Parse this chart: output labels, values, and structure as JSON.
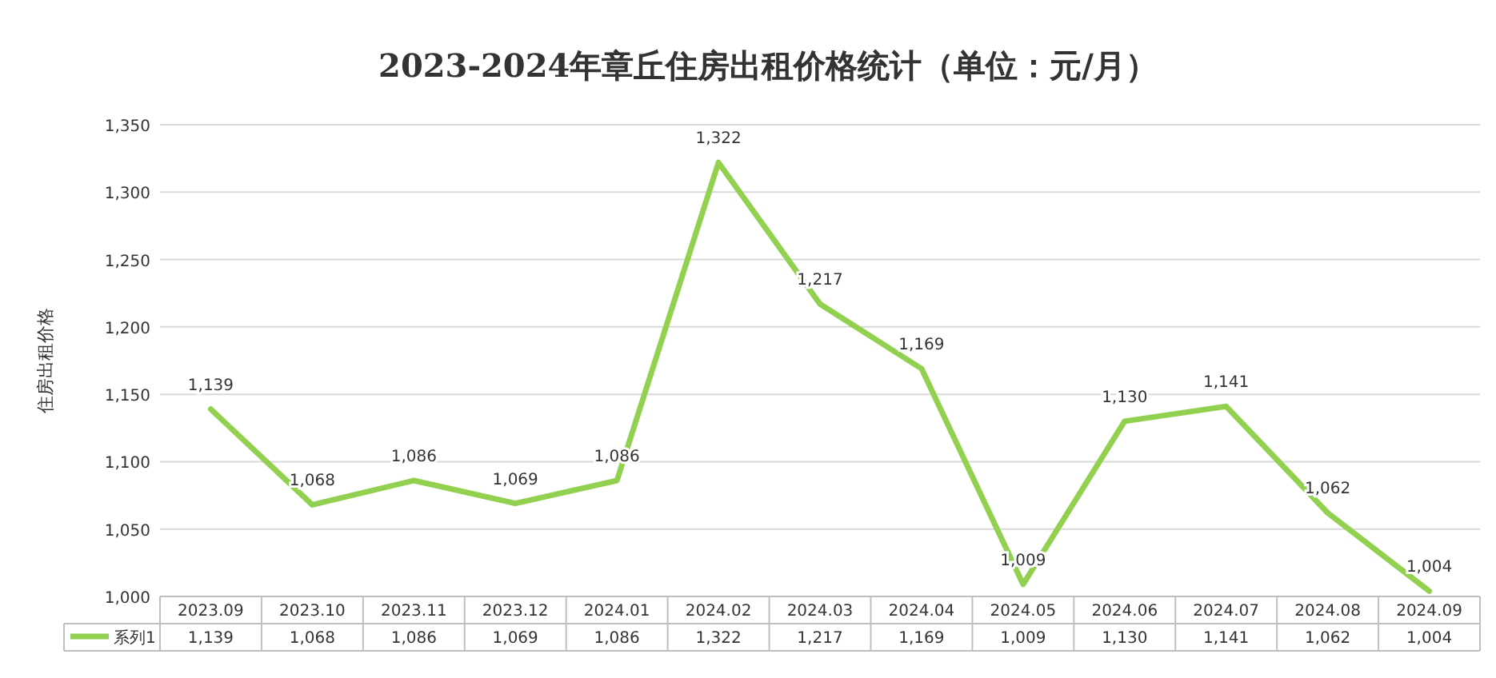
{
  "chart_data": {
    "type": "line",
    "title": "2023-2024年章丘住房出租价格统计（单位：元/月）",
    "ylabel": "住房出租价格",
    "categories": [
      "2023.09",
      "2023.10",
      "2023.11",
      "2023.12",
      "2024.01",
      "2024.02",
      "2024.03",
      "2024.04",
      "2024.05",
      "2024.06",
      "2024.07",
      "2024.08",
      "2024.09"
    ],
    "series": [
      {
        "name": "系列1",
        "color": "#92d050",
        "values": [
          1139,
          1068,
          1086,
          1069,
          1086,
          1322,
          1217,
          1169,
          1009,
          1130,
          1141,
          1062,
          1004
        ],
        "value_labels": [
          "1,139",
          "1,068",
          "1,086",
          "1,069",
          "1,086",
          "1,322",
          "1,217",
          "1,169",
          "1,009",
          "1,130",
          "1,141",
          "1,062",
          "1,004"
        ]
      }
    ],
    "ylim": [
      1000,
      1350
    ],
    "yticks": [
      {
        "value": 1000,
        "label": "1,000"
      },
      {
        "value": 1050,
        "label": "1,050"
      },
      {
        "value": 1100,
        "label": "1,100"
      },
      {
        "value": 1150,
        "label": "1,150"
      },
      {
        "value": 1200,
        "label": "1,200"
      },
      {
        "value": 1250,
        "label": "1,250"
      },
      {
        "value": 1300,
        "label": "1,300"
      },
      {
        "value": 1350,
        "label": "1,350"
      }
    ],
    "grid": "y",
    "legend": "bottom",
    "line_style": "solid"
  }
}
